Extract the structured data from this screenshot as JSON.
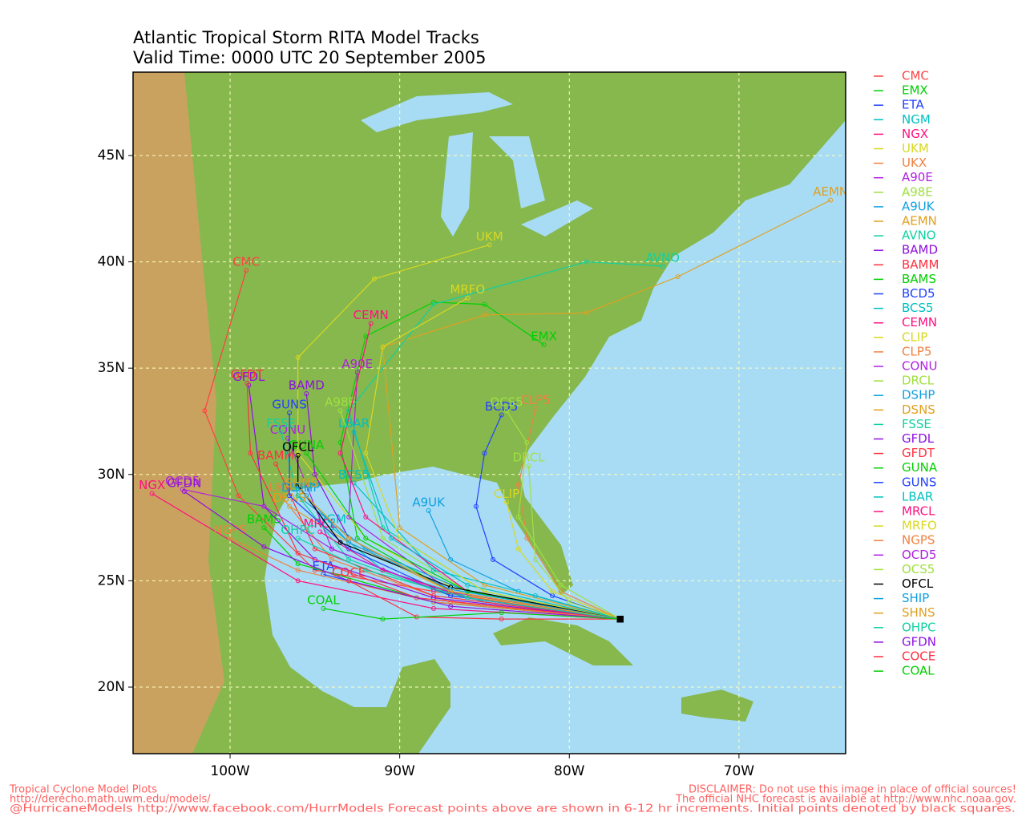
{
  "chart_data": {
    "type": "track-map",
    "title": "Atlantic Tropical Storm RITA Model Tracks",
    "subtitle": "Valid Time: 0000 UTC 20 September 2005",
    "xlim": [
      -105.72,
      -63.71
    ],
    "ylim": [
      16.87,
      48.92
    ],
    "xticks": [
      {
        "value": -100,
        "label": "100W"
      },
      {
        "value": -90,
        "label": "90W"
      },
      {
        "value": -80,
        "label": "80W"
      },
      {
        "value": -70,
        "label": "70W"
      }
    ],
    "yticks": [
      {
        "value": 20,
        "label": "20N"
      },
      {
        "value": 25,
        "label": "25N"
      },
      {
        "value": 30,
        "label": "30N"
      },
      {
        "value": 35,
        "label": "35N"
      },
      {
        "value": 40,
        "label": "40N"
      },
      {
        "value": 45,
        "label": "45N"
      }
    ],
    "grid": true,
    "series": [
      {
        "name": "CMC",
        "color": "#ff4040",
        "lon": [
          -77,
          -88,
          -95,
          -99.5,
          -101.5,
          -99.05
        ],
        "lat": [
          23.2,
          24.5,
          25.5,
          29,
          33,
          39.6
        ]
      },
      {
        "name": "EMX",
        "color": "#00d000",
        "lon": [
          -77,
          -87,
          -92.5,
          -93.5,
          -92,
          -88,
          -85,
          -81.5
        ],
        "lat": [
          23.2,
          24.5,
          27,
          31.5,
          36.5,
          38.1,
          38,
          36.1
        ]
      },
      {
        "name": "ETA",
        "color": "#2040ff",
        "lon": [
          -77,
          -88,
          -94.5
        ],
        "lat": [
          23.2,
          24,
          25.3
        ]
      },
      {
        "name": "NGM",
        "color": "#00c0c0",
        "lon": [
          -77,
          -85,
          -91,
          -94
        ],
        "lat": [
          23.2,
          24,
          25.5,
          27.5
        ]
      },
      {
        "name": "NGX",
        "color": "#ff1080",
        "lon": [
          -77,
          -88,
          -96,
          -104.6
        ],
        "lat": [
          23.2,
          23.7,
          25,
          29.1
        ]
      },
      {
        "name": "UKM",
        "color": "#d8d820",
        "lon": [
          -77,
          -86,
          -92,
          -96,
          -96,
          -91.5,
          -84.7
        ],
        "lat": [
          23.2,
          24.3,
          27,
          31,
          35.5,
          39.2,
          40.8
        ]
      },
      {
        "name": "UKX",
        "color": "#f08040",
        "lon": [
          -77,
          -87,
          -94,
          -97
        ],
        "lat": [
          23.2,
          24,
          26,
          29
        ]
      },
      {
        "name": "A90E",
        "color": "#b020e0",
        "lon": [
          -77,
          -87,
          -93,
          -92.5
        ],
        "lat": [
          23.2,
          24.5,
          28,
          34.8
        ]
      },
      {
        "name": "A98E",
        "color": "#a0e040",
        "lon": [
          -77,
          -86,
          -91,
          -93.5
        ],
        "lat": [
          23.2,
          24.5,
          27,
          33
        ]
      },
      {
        "name": "A9UK",
        "color": "#10a0e0",
        "lon": [
          -77,
          -83,
          -87,
          -88.3
        ],
        "lat": [
          23.2,
          24.5,
          26,
          28.3
        ]
      },
      {
        "name": "AEMN",
        "color": "#e0a020",
        "lon": [
          -77,
          -85,
          -90,
          -91,
          -85,
          -79,
          -73.6,
          -64.6
        ],
        "lat": [
          23.2,
          24.8,
          27.5,
          36,
          37.5,
          37.6,
          39.3,
          42.9
        ]
      },
      {
        "name": "AVNO",
        "color": "#10d0a0",
        "lon": [
          -77,
          -85,
          -91,
          -93,
          -88,
          -79,
          -74.5
        ],
        "lat": [
          23.2,
          24.5,
          27.5,
          33,
          38,
          40,
          39.8
        ]
      },
      {
        "name": "BAMD",
        "color": "#9010e0",
        "lon": [
          -77,
          -87,
          -93,
          -95,
          -95.5
        ],
        "lat": [
          23.2,
          24.5,
          27,
          30,
          33.8
        ]
      },
      {
        "name": "BAMM",
        "color": "#ff3040",
        "lon": [
          -77,
          -88,
          -95,
          -97.3
        ],
        "lat": [
          23.2,
          24.3,
          26.5,
          30.5
        ]
      },
      {
        "name": "BAMS",
        "color": "#00d000",
        "lon": [
          -77,
          -88,
          -96,
          -98
        ],
        "lat": [
          23.2,
          24,
          25.8,
          27.5
        ]
      },
      {
        "name": "BCD5",
        "color": "#2040ff",
        "lon": [
          -77,
          -81,
          -84.5,
          -85.5,
          -85,
          -84
        ],
        "lat": [
          23.2,
          24.3,
          26,
          28.5,
          31,
          32.8
        ]
      },
      {
        "name": "BCS5",
        "color": "#00c0c0",
        "lon": [
          -77,
          -82,
          -88,
          -92.7
        ],
        "lat": [
          23.2,
          24.3,
          25.5,
          29.6
        ]
      },
      {
        "name": "CEMN",
        "color": "#ff1080",
        "lon": [
          -77,
          -86,
          -92,
          -93.5,
          -91.7
        ],
        "lat": [
          23.2,
          24.5,
          28,
          31,
          37.1
        ]
      },
      {
        "name": "CLIP",
        "color": "#d8d820",
        "lon": [
          -77,
          -81,
          -83,
          -83.7
        ],
        "lat": [
          23.2,
          24.5,
          26.5,
          28.7
        ]
      },
      {
        "name": "CLP5",
        "color": "#f08040",
        "lon": [
          -77,
          -80.5,
          -82.5,
          -83,
          -82
        ],
        "lat": [
          23.2,
          24.5,
          27,
          29.5,
          33.1
        ]
      },
      {
        "name": "CONU",
        "color": "#b020e0",
        "lon": [
          -77,
          -87,
          -94,
          -96.6
        ],
        "lat": [
          23.2,
          24.3,
          26.5,
          31.7
        ]
      },
      {
        "name": "DRCL",
        "color": "#a0e040",
        "lon": [
          -77,
          -80,
          -82,
          -82.4
        ],
        "lat": [
          23.2,
          24,
          26,
          30.4
        ]
      },
      {
        "name": "DSHP",
        "color": "#10a0e0",
        "lon": [
          -77,
          -86,
          -92,
          -96
        ],
        "lat": [
          23.2,
          24.5,
          26.5,
          29
        ]
      },
      {
        "name": "DSNS",
        "color": "#e0a020",
        "lon": [
          -77,
          -87,
          -93,
          -96.5
        ],
        "lat": [
          23.2,
          24.5,
          26.8,
          28.5
        ]
      },
      {
        "name": "FSSE",
        "color": "#10d0a0",
        "lon": [
          -77,
          -87,
          -93,
          -96,
          -97
        ],
        "lat": [
          23.2,
          24.3,
          26,
          29,
          32
        ]
      },
      {
        "name": "GFDL",
        "color": "#9010e0",
        "lon": [
          -77,
          -88,
          -95,
          -98,
          -98.9
        ],
        "lat": [
          23.2,
          24.2,
          26,
          28.5,
          34.2
        ]
      },
      {
        "name": "GFDT",
        "color": "#ff3040",
        "lon": [
          -77,
          -89,
          -96,
          -98.8,
          -99
        ],
        "lat": [
          23.2,
          24.2,
          26.3,
          31,
          34.3
        ]
      },
      {
        "name": "GUNA",
        "color": "#00d000",
        "lon": [
          -77,
          -86,
          -92,
          -95.5
        ],
        "lat": [
          23.2,
          24.5,
          27,
          31
        ]
      },
      {
        "name": "GUNS",
        "color": "#2040ff",
        "lon": [
          -77,
          -87,
          -93,
          -96.5,
          -96.5
        ],
        "lat": [
          23.2,
          24.3,
          26.5,
          29,
          32.9
        ]
      },
      {
        "name": "LBAR",
        "color": "#00c0c0",
        "lon": [
          -77,
          -86,
          -90.5,
          -92.7
        ],
        "lat": [
          23.2,
          24.8,
          27,
          32
        ]
      },
      {
        "name": "MRCL",
        "color": "#ff1080",
        "lon": [
          -77,
          -86,
          -91,
          -94.7
        ],
        "lat": [
          23.2,
          24.2,
          25.5,
          27.3
        ]
      },
      {
        "name": "MRFO",
        "color": "#d8d820",
        "lon": [
          -77,
          -85,
          -90,
          -92,
          -91,
          -86
        ],
        "lat": [
          23.2,
          24.5,
          27,
          31,
          36,
          38.3
        ]
      },
      {
        "name": "NGPS",
        "color": "#f08040",
        "lon": [
          -77,
          -88,
          -96,
          -100
        ],
        "lat": [
          23.2,
          24,
          25.5,
          27
        ]
      },
      {
        "name": "OCD5",
        "color": "#b020e0",
        "lon": [
          -77,
          -88,
          -94,
          -98,
          -102.8
        ],
        "lat": [
          23.2,
          24.6,
          26.5,
          28.5,
          29.3
        ]
      },
      {
        "name": "OCS5",
        "color": "#a0e040",
        "lon": [
          -77,
          -80.5,
          -83,
          -82.5,
          -83.7
        ],
        "lat": [
          23.2,
          24.8,
          28,
          31.5,
          33
        ]
      },
      {
        "name": "OFCL",
        "color": "#000000",
        "lon": [
          -77,
          -87,
          -93.5,
          -96,
          -96
        ],
        "lat": [
          23.2,
          24.7,
          26.8,
          29.5,
          30.9
        ]
      },
      {
        "name": "SHIP",
        "color": "#10a0e0",
        "lon": [
          -77,
          -87,
          -93,
          -95.5
        ],
        "lat": [
          23.2,
          24.6,
          26.8,
          29
        ]
      },
      {
        "name": "SHNS",
        "color": "#e0a020",
        "lon": [
          -77,
          -87,
          -93,
          -95.8
        ],
        "lat": [
          23.2,
          24.5,
          27,
          29.2
        ]
      },
      {
        "name": "OHPC",
        "color": "#10d0a0",
        "lon": [
          -77,
          -86,
          -92,
          -96
        ],
        "lat": [
          23.2,
          24.2,
          25.5,
          27
        ]
      },
      {
        "name": "GFDN",
        "color": "#9010e0",
        "lon": [
          -77,
          -87,
          -93,
          -98,
          -102.7
        ],
        "lat": [
          23.2,
          23.8,
          25,
          26.6,
          29.2
        ]
      },
      {
        "name": "COCE",
        "color": "#ff3040",
        "lon": [
          -77,
          -84,
          -89,
          -93
        ],
        "lat": [
          23.2,
          23.2,
          23.3,
          25
        ]
      },
      {
        "name": "COAL",
        "color": "#00d000",
        "lon": [
          -77,
          -84,
          -91,
          -94.5
        ],
        "lat": [
          23.2,
          23.5,
          23.2,
          23.7
        ]
      }
    ],
    "footer_left": [
      "Tropical Cyclone Model Plots",
      "http://derecho.math.uwm.edu/models/"
    ],
    "footer_right": [
      "DISCLAIMER: Do not use this image in place of official sources!",
      "The official NHC forecast is available at http://www.nhc.noaa.gov."
    ],
    "footer_bottom": "@HurricaneModels  http://www.facebook.com/HurrModels  Forecast points above are shown in 6-12 hr increments. Initial points denoted by black squares."
  }
}
